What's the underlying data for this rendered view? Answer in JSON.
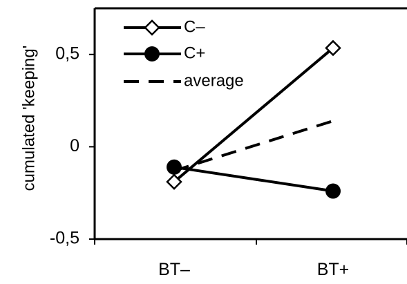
{
  "chart_data": {
    "type": "line",
    "title": "",
    "xlabel": "",
    "ylabel": "cumulated 'keeping'",
    "categories": [
      "BT–",
      "BT+"
    ],
    "yticks": [
      "0,5",
      "0",
      "-0,5"
    ],
    "ytick_values": [
      0.5,
      0,
      -0.5
    ],
    "ylim": [
      -0.5,
      0.75
    ],
    "grid": false,
    "legend_position": "top-left",
    "series": [
      {
        "name": "C–",
        "values": [
          -0.19,
          0.535
        ],
        "marker": "open-diamond",
        "line": "solid",
        "color": "#000000"
      },
      {
        "name": "C+",
        "values": [
          -0.11,
          -0.24
        ],
        "marker": "filled-circle",
        "line": "solid",
        "color": "#000000"
      },
      {
        "name": "average",
        "values": [
          -0.13,
          0.14
        ],
        "marker": "none",
        "line": "dashed",
        "color": "#000000"
      }
    ]
  }
}
